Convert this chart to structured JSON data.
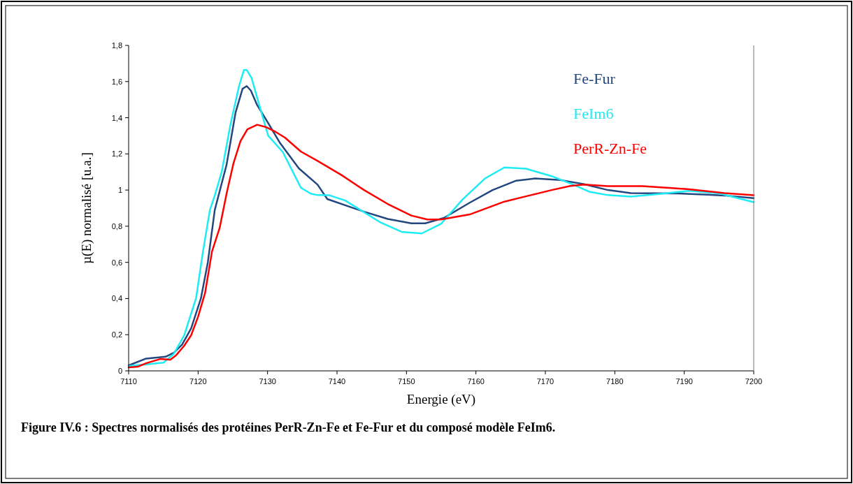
{
  "chart_data": {
    "type": "line",
    "xlabel": "Energie (eV)",
    "ylabel": "µ(E) normalisé [u.a.]",
    "annotations": [
      "Figure IV.6 : Spectres normalisés des protéines PerR-Zn-Fe et Fe-Fur et du composé modèle FeIm6."
    ],
    "xlim": [
      7110,
      7200
    ],
    "xticks": [
      7110,
      7120,
      7130,
      7140,
      7150,
      7160,
      7170,
      7180,
      7190,
      7200
    ],
    "ylim": [
      0,
      1.8
    ],
    "yticks": [
      0,
      {
        "value": 0.2,
        "label": "0,2"
      },
      {
        "value": 0.4,
        "label": "0,4"
      },
      {
        "value": 0.6,
        "label": "0,6"
      },
      {
        "value": 0.8,
        "label": "0,8"
      },
      1,
      {
        "value": 1.2,
        "label": "1,2"
      },
      {
        "value": 1.4,
        "label": "1,4"
      },
      {
        "value": 1.6,
        "label": "1,6"
      },
      {
        "value": 1.8,
        "label": "1,8"
      }
    ],
    "grid": false,
    "legend": "right",
    "marker": "none",
    "line_style": "solid",
    "series": [
      {
        "name": "Fe-Fur",
        "color": "#23477f",
        "x": [
          7110,
          7112.5,
          7115.3,
          7116.5,
          7117.7,
          7119,
          7120.4,
          7121.4,
          7122.4,
          7124.1,
          7125.4,
          7126.4,
          7127,
          7127.6,
          7128.5,
          7130.1,
          7131.8,
          7134.5,
          7137.2,
          7138.6,
          7143.9,
          7147.3,
          7150.7,
          7152.7,
          7155.4,
          7159.1,
          7162.4,
          7165.8,
          7168.5,
          7170.9,
          7172.2,
          7175.6,
          7179,
          7182.3,
          7189.1,
          7195.8,
          7200
        ],
        "values": [
          0.03,
          0.068,
          0.078,
          0.1,
          0.145,
          0.235,
          0.4,
          0.6,
          0.89,
          1.14,
          1.43,
          1.56,
          1.575,
          1.55,
          1.47,
          1.37,
          1.26,
          1.12,
          1.03,
          0.95,
          0.88,
          0.84,
          0.816,
          0.816,
          0.846,
          0.93,
          1.0,
          1.052,
          1.064,
          1.058,
          1.055,
          1.032,
          1.0,
          0.983,
          0.981,
          0.97,
          0.955
        ]
      },
      {
        "name": "FeIm6",
        "color": "#1eecf4",
        "x": [
          7110,
          7112.5,
          7115,
          7116.5,
          7118,
          7119.7,
          7120.7,
          7121.7,
          7122.4,
          7123.4,
          7124.7,
          7125.9,
          7126.6,
          7127,
          7127.7,
          7128.8,
          7130.1,
          7132.2,
          7134.8,
          7136.2,
          7137.2,
          7138.9,
          7141.2,
          7146.3,
          7149.3,
          7152.2,
          7155,
          7158.1,
          7161.3,
          7164.1,
          7167.2,
          7170.9,
          7173.9,
          7176.3,
          7179,
          7182.3,
          7186.4,
          7190.7,
          7195.1,
          7200
        ],
        "values": [
          0.027,
          0.036,
          0.045,
          0.094,
          0.197,
          0.4,
          0.66,
          0.89,
          0.97,
          1.1,
          1.37,
          1.575,
          1.664,
          1.664,
          1.62,
          1.47,
          1.3,
          1.21,
          1.013,
          0.98,
          0.972,
          0.971,
          0.942,
          0.82,
          0.769,
          0.76,
          0.814,
          0.949,
          1.064,
          1.125,
          1.118,
          1.077,
          1.032,
          0.991,
          0.972,
          0.964,
          0.978,
          0.996,
          0.981,
          0.933
        ]
      },
      {
        "name": "PerR-Zn-Fe",
        "color": "#ff0000",
        "x": [
          7110,
          7111.3,
          7112.5,
          7114.6,
          7116,
          7116.8,
          7118,
          7119,
          7120,
          7121,
          7122,
          7123.1,
          7124.1,
          7125.1,
          7126.1,
          7127.1,
          7128.5,
          7129.8,
          7131.1,
          7132.5,
          7134.8,
          7137.2,
          7140.6,
          7143.9,
          7147.3,
          7150.7,
          7153,
          7155,
          7159.1,
          7164.1,
          7167.5,
          7170.9,
          7173.6,
          7175.6,
          7179,
          7184,
          7187.4,
          7190.7,
          7195.8,
          7200
        ],
        "values": [
          0.019,
          0.023,
          0.042,
          0.066,
          0.062,
          0.085,
          0.139,
          0.197,
          0.3,
          0.43,
          0.66,
          0.79,
          0.98,
          1.149,
          1.27,
          1.336,
          1.361,
          1.348,
          1.323,
          1.29,
          1.213,
          1.161,
          1.084,
          1.0,
          0.923,
          0.859,
          0.837,
          0.837,
          0.865,
          0.936,
          0.968,
          1.0,
          1.023,
          1.03,
          1.022,
          1.022,
          1.013,
          1.004,
          0.983,
          0.971
        ]
      }
    ]
  }
}
